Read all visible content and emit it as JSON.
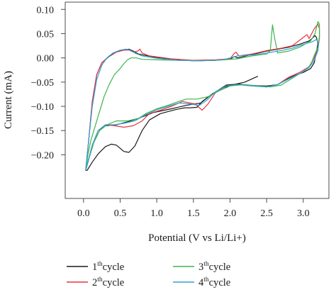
{
  "chart_data": {
    "type": "line",
    "xlabel": "Potential (V vs Li/Li+)",
    "ylabel": "Current (mA)",
    "xlim": [
      -0.25,
      3.35
    ],
    "ylim": [
      -0.29,
      0.115
    ],
    "xticks": [
      0.0,
      0.5,
      1.0,
      1.5,
      2.0,
      2.5,
      3.0
    ],
    "xtick_labels": [
      "0.0",
      "0.5",
      "1.0",
      "1.5",
      "2.0",
      "2.5",
      "3.0"
    ],
    "yticks": [
      0.1,
      0.05,
      0.0,
      -0.05,
      -0.1,
      -0.15,
      -0.2
    ],
    "ytick_labels": [
      "0.10",
      "0.05",
      "0.00",
      "−0.05",
      "−0.10",
      "−0.15",
      "−0.20"
    ],
    "grid": false,
    "legend_position": "below plot",
    "series": [
      {
        "name": "1th cycle",
        "legend_base": "1",
        "legend_sup": "th",
        "legend_tail": "cycle",
        "color": "#1a1a1a",
        "points": [
          [
            2.38,
            -0.038
          ],
          [
            2.2,
            -0.05
          ],
          [
            2.05,
            -0.055
          ],
          [
            1.9,
            -0.062
          ],
          [
            1.75,
            -0.075
          ],
          [
            1.62,
            -0.09
          ],
          [
            1.55,
            -0.102
          ],
          [
            1.45,
            -0.103
          ],
          [
            1.38,
            -0.103
          ],
          [
            1.25,
            -0.107
          ],
          [
            1.05,
            -0.115
          ],
          [
            0.9,
            -0.128
          ],
          [
            0.8,
            -0.15
          ],
          [
            0.7,
            -0.182
          ],
          [
            0.62,
            -0.195
          ],
          [
            0.55,
            -0.193
          ],
          [
            0.45,
            -0.18
          ],
          [
            0.38,
            -0.178
          ],
          [
            0.3,
            -0.183
          ],
          [
            0.2,
            -0.198
          ],
          [
            0.12,
            -0.215
          ],
          [
            0.05,
            -0.232
          ],
          [
            0.03,
            -0.232
          ],
          [
            0.07,
            -0.17
          ],
          [
            0.12,
            -0.09
          ],
          [
            0.18,
            -0.035
          ],
          [
            0.25,
            -0.01
          ],
          [
            0.35,
            0.003
          ],
          [
            0.45,
            0.012
          ],
          [
            0.55,
            0.016
          ],
          [
            0.62,
            0.018
          ],
          [
            0.68,
            0.014
          ],
          [
            0.75,
            0.008
          ],
          [
            0.95,
            0.002
          ],
          [
            1.2,
            -0.003
          ],
          [
            1.5,
            -0.006
          ],
          [
            1.8,
            -0.005
          ],
          [
            2.0,
            -0.003
          ],
          [
            2.06,
            0.003
          ],
          [
            2.1,
            0.0
          ],
          [
            2.3,
            0.007
          ],
          [
            2.5,
            0.014
          ],
          [
            2.8,
            0.022
          ],
          [
            2.95,
            0.028
          ],
          [
            3.08,
            0.035
          ],
          [
            3.12,
            0.04
          ],
          [
            3.16,
            0.046
          ],
          [
            3.18,
            0.042
          ],
          [
            3.2,
            0.03
          ],
          [
            3.18,
            0.012
          ],
          [
            3.15,
            -0.01
          ],
          [
            3.1,
            -0.022
          ],
          [
            3.0,
            -0.03
          ],
          [
            2.85,
            -0.038
          ],
          [
            2.65,
            -0.055
          ],
          [
            2.5,
            -0.058
          ],
          [
            2.3,
            -0.057
          ],
          [
            2.1,
            -0.054
          ],
          [
            1.95,
            -0.056
          ],
          [
            1.75,
            -0.075
          ],
          [
            1.6,
            -0.093
          ],
          [
            1.4,
            -0.098
          ],
          [
            1.2,
            -0.105
          ],
          [
            0.95,
            -0.113
          ],
          [
            0.75,
            -0.125
          ],
          [
            0.6,
            -0.132
          ],
          [
            0.45,
            -0.138
          ],
          [
            0.3,
            -0.14
          ],
          [
            0.2,
            -0.15
          ],
          [
            0.12,
            -0.18
          ],
          [
            0.06,
            -0.215
          ],
          [
            0.03,
            -0.232
          ]
        ]
      },
      {
        "name": "2th cycle",
        "legend_base": "2",
        "legend_sup": "th",
        "legend_tail": "cycle",
        "color": "#e8333f",
        "points": [
          [
            0.03,
            -0.232
          ],
          [
            0.07,
            -0.17
          ],
          [
            0.12,
            -0.09
          ],
          [
            0.18,
            -0.035
          ],
          [
            0.25,
            -0.01
          ],
          [
            0.35,
            0.004
          ],
          [
            0.45,
            0.012
          ],
          [
            0.55,
            0.016
          ],
          [
            0.62,
            0.016
          ],
          [
            0.68,
            0.012
          ],
          [
            0.74,
            0.014
          ],
          [
            0.77,
            0.018
          ],
          [
            0.8,
            0.01
          ],
          [
            0.9,
            0.004
          ],
          [
            1.2,
            -0.002
          ],
          [
            1.5,
            -0.005
          ],
          [
            1.8,
            -0.004
          ],
          [
            2.0,
            -0.002
          ],
          [
            2.05,
            0.008
          ],
          [
            2.08,
            0.012
          ],
          [
            2.12,
            0.004
          ],
          [
            2.3,
            0.008
          ],
          [
            2.5,
            0.015
          ],
          [
            2.7,
            0.02
          ],
          [
            2.85,
            0.025
          ],
          [
            3.0,
            0.042
          ],
          [
            3.05,
            0.048
          ],
          [
            3.08,
            0.04
          ],
          [
            3.15,
            0.06
          ],
          [
            3.2,
            0.07
          ],
          [
            3.22,
            0.06
          ],
          [
            3.22,
            0.04
          ],
          [
            3.2,
            0.02
          ],
          [
            3.15,
            0.0
          ],
          [
            3.08,
            -0.018
          ],
          [
            2.95,
            -0.03
          ],
          [
            2.8,
            -0.04
          ],
          [
            2.65,
            -0.055
          ],
          [
            2.5,
            -0.06
          ],
          [
            2.3,
            -0.058
          ],
          [
            2.1,
            -0.055
          ],
          [
            1.95,
            -0.058
          ],
          [
            1.8,
            -0.072
          ],
          [
            1.7,
            -0.095
          ],
          [
            1.62,
            -0.108
          ],
          [
            1.52,
            -0.095
          ],
          [
            1.35,
            -0.09
          ],
          [
            1.2,
            -0.1
          ],
          [
            1.05,
            -0.108
          ],
          [
            0.9,
            -0.115
          ],
          [
            0.8,
            -0.13
          ],
          [
            0.68,
            -0.14
          ],
          [
            0.55,
            -0.143
          ],
          [
            0.42,
            -0.14
          ],
          [
            0.3,
            -0.138
          ],
          [
            0.2,
            -0.15
          ],
          [
            0.12,
            -0.18
          ],
          [
            0.06,
            -0.215
          ],
          [
            0.03,
            -0.232
          ]
        ]
      },
      {
        "name": "3th cycle",
        "legend_base": "3",
        "legend_sup": "th",
        "legend_tail": "cycle",
        "color": "#3cb54a",
        "points": [
          [
            0.03,
            -0.232
          ],
          [
            0.06,
            -0.2
          ],
          [
            0.1,
            -0.17
          ],
          [
            0.16,
            -0.14
          ],
          [
            0.22,
            -0.11
          ],
          [
            0.28,
            -0.08
          ],
          [
            0.35,
            -0.055
          ],
          [
            0.42,
            -0.035
          ],
          [
            0.5,
            -0.022
          ],
          [
            0.55,
            -0.012
          ],
          [
            0.6,
            -0.004
          ],
          [
            0.65,
            0.0
          ],
          [
            0.72,
            0.0
          ],
          [
            0.8,
            -0.003
          ],
          [
            1.0,
            -0.004
          ],
          [
            1.3,
            -0.005
          ],
          [
            1.6,
            -0.006
          ],
          [
            1.9,
            -0.004
          ],
          [
            2.1,
            -0.002
          ],
          [
            2.3,
            0.004
          ],
          [
            2.5,
            0.008
          ],
          [
            2.55,
            0.015
          ],
          [
            2.58,
            0.068
          ],
          [
            2.61,
            0.04
          ],
          [
            2.65,
            0.01
          ],
          [
            2.8,
            0.014
          ],
          [
            2.95,
            0.022
          ],
          [
            3.1,
            0.035
          ],
          [
            3.16,
            0.05
          ],
          [
            3.2,
            0.075
          ],
          [
            3.22,
            0.07
          ],
          [
            3.22,
            0.045
          ],
          [
            3.2,
            0.022
          ],
          [
            3.15,
            0.005
          ],
          [
            3.1,
            -0.015
          ],
          [
            3.0,
            -0.028
          ],
          [
            2.85,
            -0.042
          ],
          [
            2.7,
            -0.056
          ],
          [
            2.55,
            -0.06
          ],
          [
            2.4,
            -0.058
          ],
          [
            2.2,
            -0.055
          ],
          [
            2.0,
            -0.058
          ],
          [
            1.85,
            -0.068
          ],
          [
            1.7,
            -0.08
          ],
          [
            1.55,
            -0.085
          ],
          [
            1.4,
            -0.085
          ],
          [
            1.3,
            -0.09
          ],
          [
            1.15,
            -0.098
          ],
          [
            1.0,
            -0.105
          ],
          [
            0.85,
            -0.115
          ],
          [
            0.75,
            -0.125
          ],
          [
            0.6,
            -0.13
          ],
          [
            0.45,
            -0.13
          ],
          [
            0.32,
            -0.138
          ],
          [
            0.22,
            -0.15
          ],
          [
            0.14,
            -0.175
          ],
          [
            0.08,
            -0.205
          ],
          [
            0.03,
            -0.232
          ]
        ]
      },
      {
        "name": "4th cycle",
        "legend_base": "4",
        "legend_sup": "th",
        "legend_tail": "cycle",
        "color": "#2fa4d8",
        "points": [
          [
            0.03,
            -0.232
          ],
          [
            0.07,
            -0.17
          ],
          [
            0.12,
            -0.1
          ],
          [
            0.18,
            -0.045
          ],
          [
            0.25,
            -0.015
          ],
          [
            0.32,
            0.0
          ],
          [
            0.4,
            0.01
          ],
          [
            0.5,
            0.016
          ],
          [
            0.58,
            0.018
          ],
          [
            0.64,
            0.016
          ],
          [
            0.7,
            0.01
          ],
          [
            0.8,
            0.004
          ],
          [
            1.0,
            -0.001
          ],
          [
            1.3,
            -0.005
          ],
          [
            1.6,
            -0.006
          ],
          [
            1.9,
            -0.004
          ],
          [
            2.05,
            0.002
          ],
          [
            2.1,
            0.004
          ],
          [
            2.3,
            0.006
          ],
          [
            2.5,
            0.01
          ],
          [
            2.7,
            0.015
          ],
          [
            2.85,
            0.02
          ],
          [
            2.95,
            0.025
          ],
          [
            3.05,
            0.03
          ],
          [
            3.12,
            0.033
          ],
          [
            3.18,
            0.038
          ],
          [
            3.21,
            0.03
          ],
          [
            3.2,
            0.015
          ],
          [
            3.15,
            -0.005
          ],
          [
            3.08,
            -0.02
          ],
          [
            2.98,
            -0.03
          ],
          [
            2.82,
            -0.042
          ],
          [
            2.65,
            -0.055
          ],
          [
            2.5,
            -0.06
          ],
          [
            2.3,
            -0.058
          ],
          [
            2.1,
            -0.055
          ],
          [
            1.95,
            -0.058
          ],
          [
            1.8,
            -0.07
          ],
          [
            1.68,
            -0.088
          ],
          [
            1.58,
            -0.098
          ],
          [
            1.45,
            -0.095
          ],
          [
            1.3,
            -0.093
          ],
          [
            1.15,
            -0.1
          ],
          [
            1.0,
            -0.107
          ],
          [
            0.85,
            -0.117
          ],
          [
            0.7,
            -0.13
          ],
          [
            0.55,
            -0.135
          ],
          [
            0.42,
            -0.138
          ],
          [
            0.3,
            -0.138
          ],
          [
            0.2,
            -0.15
          ],
          [
            0.12,
            -0.18
          ],
          [
            0.06,
            -0.215
          ],
          [
            0.03,
            -0.232
          ]
        ]
      }
    ]
  }
}
